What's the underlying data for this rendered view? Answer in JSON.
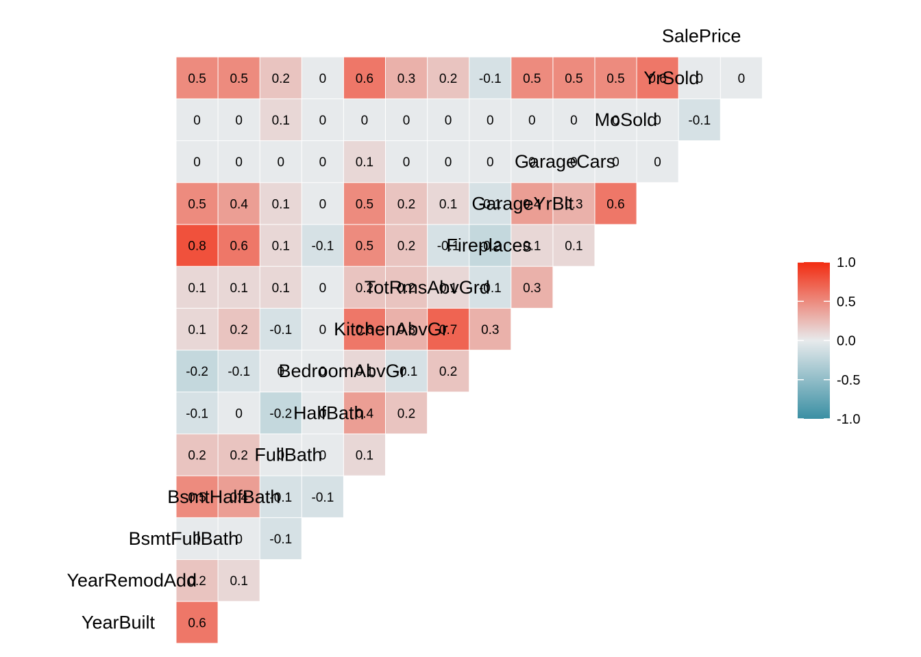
{
  "chart_data": {
    "type": "heatmap",
    "title": "",
    "variables": [
      "YearBuilt",
      "YearRemodAdd",
      "BsmtFullBath",
      "BsmtHalfBath",
      "FullBath",
      "HalfBath",
      "BedroomAbvGr",
      "KitchenAbvGr",
      "TotRmsAbvGrd",
      "Fireplaces",
      "GarageYrBlt",
      "GarageCars",
      "MoSold",
      "YrSold",
      "SalePrice"
    ],
    "matrix": [
      [],
      [
        "0.6"
      ],
      [
        "0.2",
        "0.1"
      ],
      [
        "0",
        "0",
        "-0.1"
      ],
      [
        "0.5",
        "0.4",
        "-0.1",
        "-0.1"
      ],
      [
        "0.2",
        "0.2",
        "0",
        "0",
        "0.1"
      ],
      [
        "-0.1",
        "0",
        "-0.2",
        "0",
        "0.4",
        "0.2"
      ],
      [
        "-0.2",
        "-0.1",
        "0",
        "0",
        "0.1",
        "-0.1",
        "0.2"
      ],
      [
        "0.1",
        "0.2",
        "-0.1",
        "0",
        "0.6",
        "0.3",
        "0.7",
        "0.3"
      ],
      [
        "0.1",
        "0.1",
        "0.1",
        "0",
        "0.2",
        "0.2",
        "0.1",
        "-0.1",
        "0.3"
      ],
      [
        "0.8",
        "0.6",
        "0.1",
        "-0.1",
        "0.5",
        "0.2",
        "-0.1",
        "-0.2",
        "0.1",
        "0.1"
      ],
      [
        "0.5",
        "0.4",
        "0.1",
        "0",
        "0.5",
        "0.2",
        "0.1",
        "-0.1",
        "0.4",
        "0.3",
        "0.6"
      ],
      [
        "0",
        "0",
        "0",
        "0",
        "0.1",
        "0",
        "0",
        "0",
        "0",
        "0",
        "0",
        "0"
      ],
      [
        "0",
        "0",
        "0.1",
        "0",
        "0",
        "0",
        "0",
        "0",
        "0",
        "0",
        "0",
        "0",
        "-0.1"
      ],
      [
        "0.5",
        "0.5",
        "0.2",
        "0",
        "0.6",
        "0.3",
        "0.2",
        "-0.1",
        "0.5",
        "0.5",
        "0.5",
        "0.6",
        "0",
        "0"
      ]
    ],
    "color_scale": {
      "low": "#3A8FA3",
      "mid": "#E7EAEC",
      "high": "#F22B10",
      "range": [
        -1.0,
        1.0
      ]
    },
    "legend": {
      "position": "right",
      "ticks": [
        "1.0",
        "0.5",
        "0.0",
        "-0.5",
        "-1.0"
      ]
    }
  }
}
